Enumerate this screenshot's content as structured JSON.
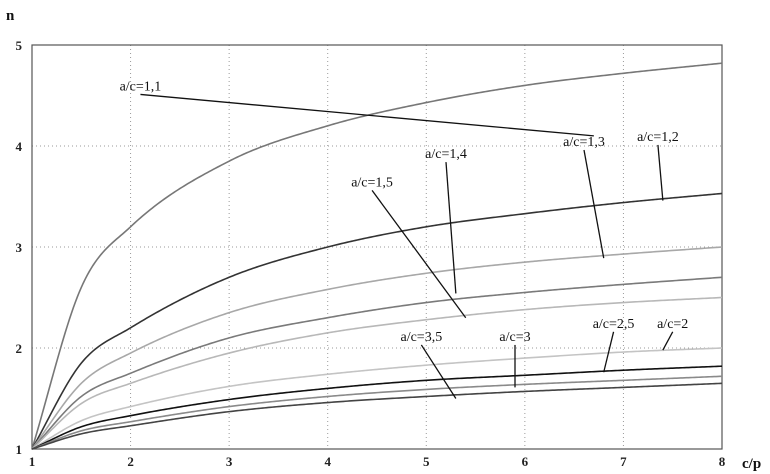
{
  "chart_data": {
    "type": "line",
    "title": "",
    "xlabel": "c/p",
    "ylabel": "n",
    "xlim": [
      1,
      8
    ],
    "ylim": [
      1,
      5
    ],
    "grid": true,
    "x_ticks": [
      "1",
      "2",
      "3",
      "4",
      "5",
      "6",
      "7",
      "8"
    ],
    "y_ticks": [
      "1",
      "2",
      "3",
      "4",
      "5"
    ],
    "x": [
      1,
      1.5,
      2,
      3,
      4,
      5,
      6,
      7,
      8
    ],
    "series": [
      {
        "name": "a/c=1,1",
        "color": "#777777",
        "values": [
          1.0,
          2.6,
          3.2,
          3.85,
          4.2,
          4.43,
          4.6,
          4.72,
          4.82
        ],
        "label_anchor": [
          6.7,
          4.1
        ]
      },
      {
        "name": "a/c=1,2",
        "color": "#333333",
        "values": [
          1.0,
          1.85,
          2.2,
          2.7,
          3.0,
          3.2,
          3.33,
          3.44,
          3.53
        ],
        "label_anchor": [
          7.4,
          3.46
        ]
      },
      {
        "name": "a/c=1,3",
        "color": "#a8a8a8",
        "values": [
          1.0,
          1.65,
          1.95,
          2.35,
          2.58,
          2.74,
          2.85,
          2.93,
          3.0
        ],
        "label_anchor": [
          6.8,
          2.89
        ]
      },
      {
        "name": "a/c=1,4",
        "color": "#7a7a7a",
        "values": [
          1.0,
          1.52,
          1.75,
          2.1,
          2.3,
          2.45,
          2.55,
          2.63,
          2.7
        ],
        "label_anchor": [
          5.3,
          2.54
        ]
      },
      {
        "name": "a/c=1,5",
        "color": "#b8b8b8",
        "values": [
          1.0,
          1.45,
          1.65,
          1.95,
          2.15,
          2.28,
          2.38,
          2.45,
          2.5
        ],
        "label_anchor": [
          5.4,
          2.3
        ]
      },
      {
        "name": "a/c=2",
        "color": "#c4c4c4",
        "values": [
          1.0,
          1.28,
          1.42,
          1.62,
          1.74,
          1.83,
          1.9,
          1.96,
          2.0
        ],
        "label_anchor": [
          7.4,
          1.98
        ]
      },
      {
        "name": "a/c=2,5",
        "color": "#111111",
        "values": [
          1.0,
          1.22,
          1.33,
          1.49,
          1.6,
          1.68,
          1.73,
          1.78,
          1.82
        ],
        "label_anchor": [
          6.8,
          1.76
        ]
      },
      {
        "name": "a/c=3",
        "color": "#8a8a8a",
        "values": [
          1.0,
          1.18,
          1.27,
          1.42,
          1.52,
          1.59,
          1.64,
          1.68,
          1.72
        ],
        "label_anchor": [
          5.9,
          1.61
        ]
      },
      {
        "name": "a/c=3,5",
        "color": "#444444",
        "values": [
          1.0,
          1.15,
          1.23,
          1.37,
          1.46,
          1.52,
          1.57,
          1.61,
          1.65
        ],
        "label_anchor": [
          5.3,
          1.5
        ]
      }
    ],
    "labels": [
      {
        "text": "a/c=1,1",
        "pos": [
          2.1,
          4.55
        ]
      },
      {
        "text": "a/c=1,2",
        "pos": [
          7.35,
          4.05
        ]
      },
      {
        "text": "a/c=1,3",
        "pos": [
          6.6,
          4.0
        ]
      },
      {
        "text": "a/c=1,4",
        "pos": [
          5.2,
          3.88
        ]
      },
      {
        "text": "a/c=1,5",
        "pos": [
          4.45,
          3.6
        ]
      },
      {
        "text": "a/c=2",
        "pos": [
          7.5,
          2.2
        ]
      },
      {
        "text": "a/c=2,5",
        "pos": [
          6.9,
          2.2
        ]
      },
      {
        "text": "a/c=3",
        "pos": [
          5.9,
          2.07
        ]
      },
      {
        "text": "a/c=3,5",
        "pos": [
          4.95,
          2.07
        ]
      }
    ]
  }
}
